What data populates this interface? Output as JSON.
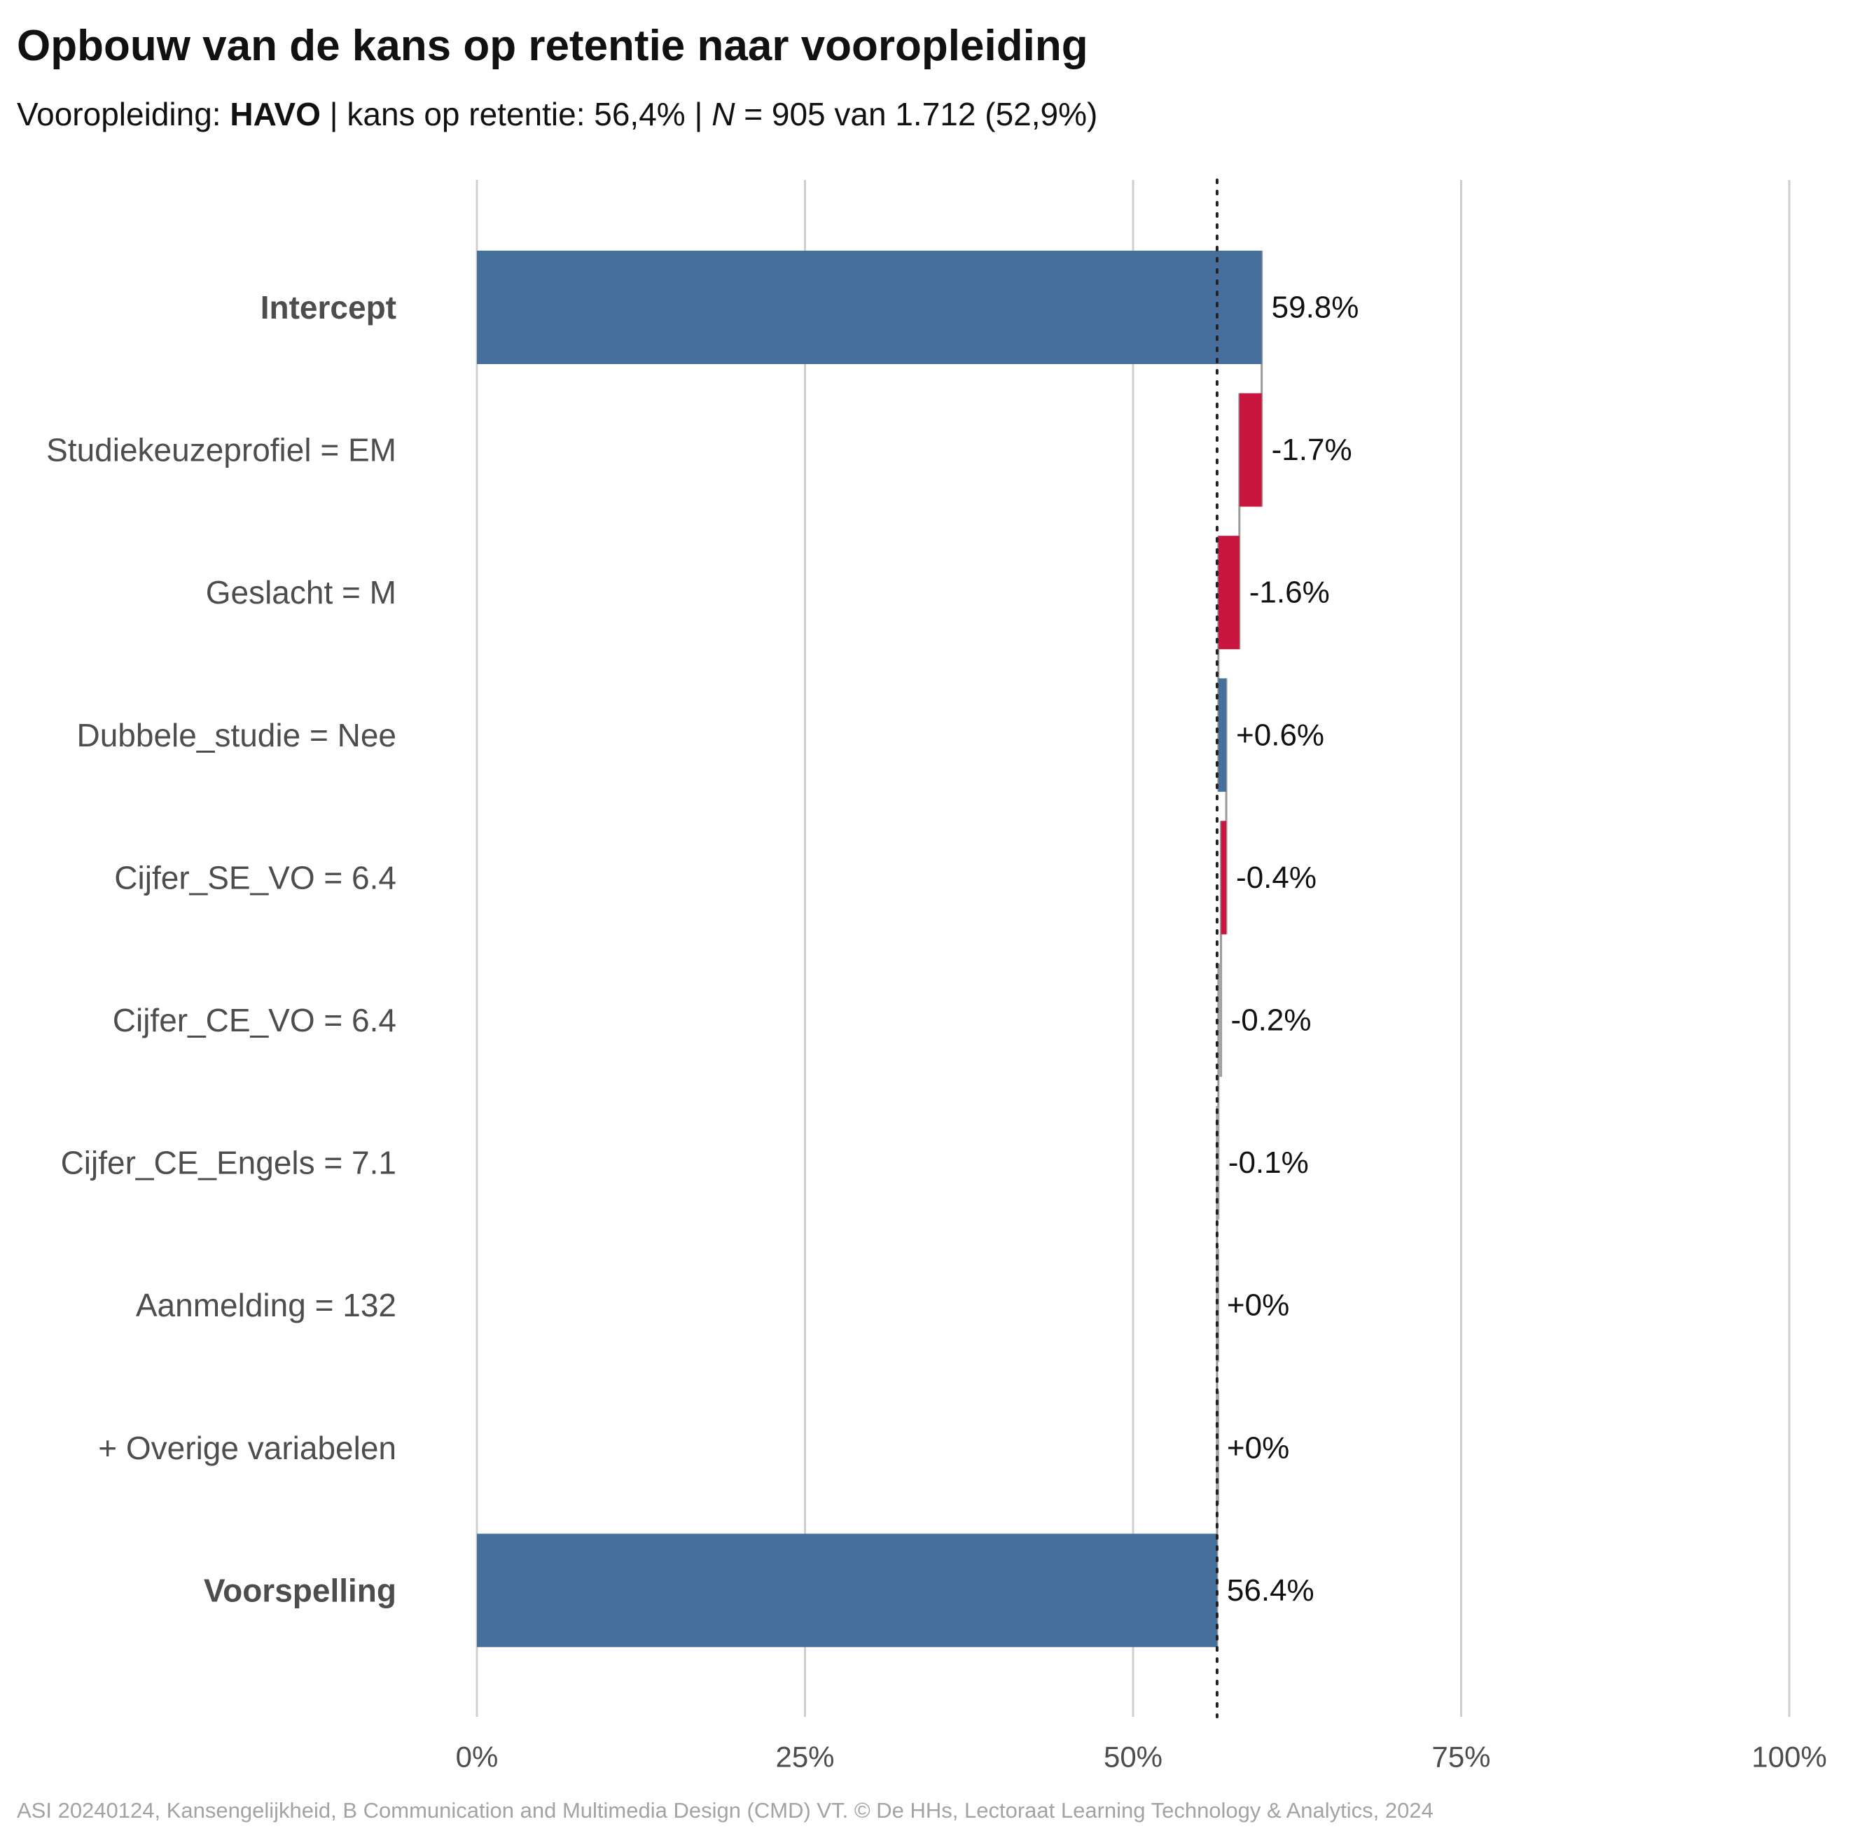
{
  "title": "Opbouw van de kans op retentie naar vooropleiding",
  "subtitle": {
    "label": "Vooropleiding: ",
    "group": "HAVO",
    "sep1": " | kans op retentie: ",
    "probability": "56,4%",
    "sep2": " | ",
    "n_symbol": "N",
    "n_text": " = 905 van 1.712 (52,9%)"
  },
  "caption": "ASI 20240124, Kansengelijkheid, B Communication and Multimedia Design (CMD) VT. © De HHs, Lectoraat Learning Technology & Analytics, 2024",
  "colors": {
    "total": "#476f9b",
    "positive": "#476f9b",
    "negative": "#c8163f",
    "neutral": "#a6a6a6",
    "grid": "#cfcfcf",
    "connector": "#9a9a9a",
    "reference": "#222222",
    "label": "#4d4d4d",
    "value": "#111111"
  },
  "chart_data": {
    "type": "bar",
    "orientation": "horizontal-waterfall",
    "xlim": [
      0,
      100
    ],
    "x_ticks": [
      0,
      25,
      50,
      75,
      100
    ],
    "x_tick_labels": [
      "0%",
      "25%",
      "50%",
      "75%",
      "100%"
    ],
    "grid": true,
    "reference_line": 56.4,
    "rows": [
      {
        "label": "Intercept",
        "kind": "total",
        "bold": true,
        "value": 59.8,
        "value_label": "59.8%"
      },
      {
        "label": "Studiekeuzeprofiel = EM",
        "kind": "delta",
        "bold": false,
        "value": -1.7,
        "value_label": "-1.7%"
      },
      {
        "label": "Geslacht = M",
        "kind": "delta",
        "bold": false,
        "value": -1.6,
        "value_label": "-1.6%"
      },
      {
        "label": "Dubbele_studie = Nee",
        "kind": "delta",
        "bold": false,
        "value": 0.6,
        "value_label": "+0.6%"
      },
      {
        "label": "Cijfer_SE_VO = 6.4",
        "kind": "delta",
        "bold": false,
        "value": -0.4,
        "value_label": "-0.4%"
      },
      {
        "label": "Cijfer_CE_VO = 6.4",
        "kind": "delta",
        "bold": false,
        "value": -0.2,
        "value_label": "-0.2%"
      },
      {
        "label": "Cijfer_CE_Engels = 7.1",
        "kind": "delta",
        "bold": false,
        "value": -0.1,
        "value_label": "-0.1%"
      },
      {
        "label": "Aanmelding = 132",
        "kind": "delta",
        "bold": false,
        "value": 0.0,
        "value_label": "+0%"
      },
      {
        "label": "+ Overige variabelen",
        "kind": "delta",
        "bold": false,
        "value": 0.0,
        "value_label": "+0%"
      },
      {
        "label": "Voorspelling",
        "kind": "total",
        "bold": true,
        "value": 56.4,
        "value_label": "56.4%"
      }
    ]
  }
}
